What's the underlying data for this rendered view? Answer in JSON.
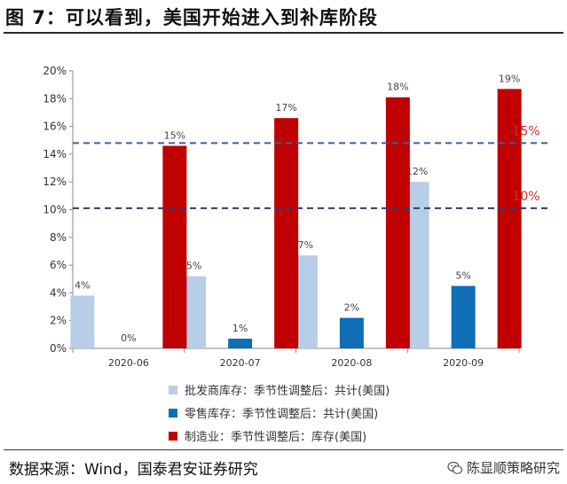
{
  "title": "图 7：可以看到，美国开始进入到补库阶段",
  "source": "数据来源：Wind，国泰君安证券研究",
  "watermark": "陈显顺策略研究",
  "watermark_icon": "wechat-icon",
  "chart_data": {
    "type": "bar",
    "categories": [
      "2020-06",
      "2020-07",
      "2020-08",
      "2020-09"
    ],
    "ylim": [
      0,
      20
    ],
    "yticks": [
      "0%",
      "2%",
      "4%",
      "6%",
      "8%",
      "10%",
      "12%",
      "14%",
      "16%",
      "18%",
      "20%"
    ],
    "series": [
      {
        "name": "批发商库存：季节性调整后：共计(美国)",
        "color": "#b7cde8",
        "values": [
          3.8,
          5.2,
          6.7,
          12.0
        ],
        "labels": [
          "4%",
          "5%",
          "7%",
          "12%"
        ]
      },
      {
        "name": "零售库存：季节性调整后：共计(美国)",
        "color": "#0f6eb5",
        "values": [
          0.0,
          0.7,
          2.2,
          4.5
        ],
        "labels": [
          "0%",
          "1%",
          "2%",
          "5%"
        ]
      },
      {
        "name": "制造业：季节性调整后：库存(美国)",
        "color": "#c00000",
        "values": [
          14.6,
          16.6,
          18.1,
          18.7
        ],
        "labels": [
          "15%",
          "17%",
          "18%",
          "19%"
        ]
      }
    ],
    "reference_lines": [
      {
        "value": 14.8,
        "label": "15%",
        "color": "#3a5fa8",
        "label_color": "#d12b2b"
      },
      {
        "value": 10.1,
        "label": "10%",
        "color": "#2f3c6e",
        "label_color": "#d12b2b"
      }
    ],
    "grid": false,
    "legend_position": "bottom"
  }
}
